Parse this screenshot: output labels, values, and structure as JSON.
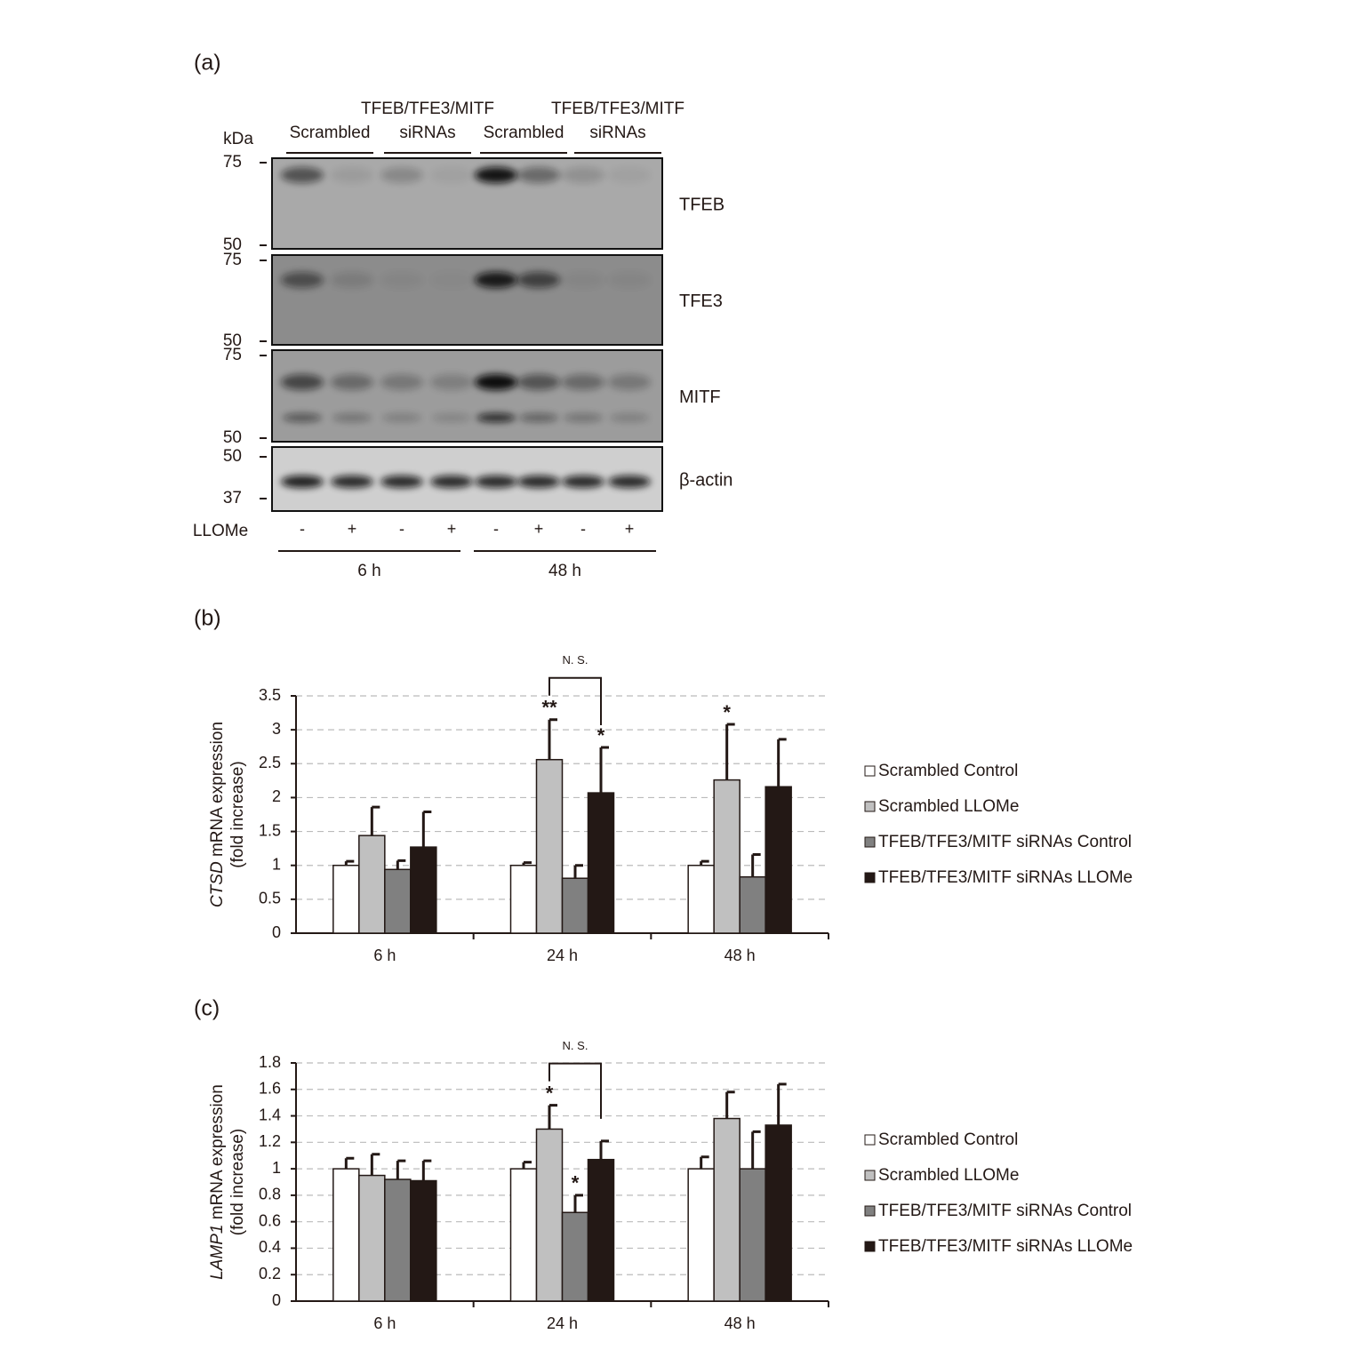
{
  "panels": [
    "(a)",
    "(b)",
    "(c)"
  ],
  "blot": {
    "kda": "kDa",
    "groups": [
      [
        "Scrambled"
      ],
      [
        "TFEB/TFE3/MITF",
        "siRNAs"
      ],
      [
        "Scrambled"
      ],
      [
        "TFEB/TFE3/MITF",
        "siRNAs"
      ]
    ],
    "rows": [
      {
        "label": "TFEB",
        "markers": [
          75,
          50
        ]
      },
      {
        "label": "TFE3",
        "markers": [
          75,
          50
        ]
      },
      {
        "label": "MITF",
        "markers": [
          75,
          50
        ]
      },
      {
        "label": "β-actin",
        "markers": [
          50,
          37
        ]
      }
    ],
    "treatment": "LLOMe",
    "signs": [
      "-",
      "+",
      "-",
      "+",
      "-",
      "+",
      "-",
      "+"
    ],
    "times": [
      "6 h",
      "48 h"
    ]
  },
  "chart_data": [
    {
      "type": "bar",
      "categories": [
        "6 h",
        "24 h",
        "48 h"
      ],
      "ylabel_gene": "CTSD",
      "ylabel": " mRNA expression",
      "ylabel2": "(fold increase)",
      "ylim": [
        0,
        3.5
      ],
      "yticks": [
        0,
        0.5,
        1,
        1.5,
        2,
        2.5,
        3,
        3.5
      ],
      "grid": true,
      "legend": "right",
      "bracket_label": "N. S.",
      "series": [
        {
          "name": "Scrambled Control",
          "color": "#ffffff",
          "values": [
            1.0,
            1.0,
            1.0
          ],
          "errors": [
            0.06,
            0.04,
            0.06
          ],
          "significance": [
            null,
            null,
            null
          ]
        },
        {
          "name": "Scrambled LLOMe",
          "color": "#c0c0c0",
          "values": [
            1.44,
            2.56,
            2.26
          ],
          "errors": [
            0.42,
            0.59,
            0.82
          ],
          "significance": [
            null,
            "**",
            "*"
          ]
        },
        {
          "name": "TFEB/TFE3/MITF siRNAs Control",
          "color": "#808080",
          "values": [
            0.94,
            0.81,
            0.83
          ],
          "errors": [
            0.13,
            0.19,
            0.33
          ],
          "significance": [
            null,
            null,
            null
          ]
        },
        {
          "name": "TFEB/TFE3/MITF siRNAs LLOMe",
          "color": "#231815",
          "values": [
            1.27,
            2.07,
            2.16
          ],
          "errors": [
            0.52,
            0.67,
            0.7
          ],
          "significance": [
            null,
            "*",
            null
          ]
        }
      ]
    },
    {
      "type": "bar",
      "categories": [
        "6 h",
        "24 h",
        "48 h"
      ],
      "ylabel_gene": "LAMP1",
      "ylabel": " mRNA expression",
      "ylabel2": "(fold increase)",
      "ylim": [
        0,
        1.8
      ],
      "yticks": [
        0,
        0.2,
        0.4,
        0.6,
        0.8,
        1,
        1.2,
        1.4,
        1.6,
        1.8
      ],
      "grid": true,
      "legend": "right",
      "bracket_label": "N. S.",
      "series": [
        {
          "name": "Scrambled Control",
          "color": "#ffffff",
          "values": [
            1.0,
            1.0,
            1.0
          ],
          "errors": [
            0.08,
            0.05,
            0.09
          ],
          "significance": [
            null,
            null,
            null
          ]
        },
        {
          "name": "Scrambled LLOMe",
          "color": "#c0c0c0",
          "values": [
            0.95,
            1.3,
            1.38
          ],
          "errors": [
            0.16,
            0.18,
            0.2
          ],
          "significance": [
            null,
            "*",
            null
          ]
        },
        {
          "name": "TFEB/TFE3/MITF siRNAs Control",
          "color": "#808080",
          "values": [
            0.92,
            0.67,
            1.0
          ],
          "errors": [
            0.14,
            0.13,
            0.28
          ],
          "significance": [
            null,
            "*",
            null
          ]
        },
        {
          "name": "TFEB/TFE3/MITF siRNAs LLOMe",
          "color": "#231815",
          "values": [
            0.91,
            1.07,
            1.33
          ],
          "errors": [
            0.15,
            0.14,
            0.31
          ],
          "significance": [
            null,
            null,
            null
          ]
        }
      ]
    }
  ]
}
